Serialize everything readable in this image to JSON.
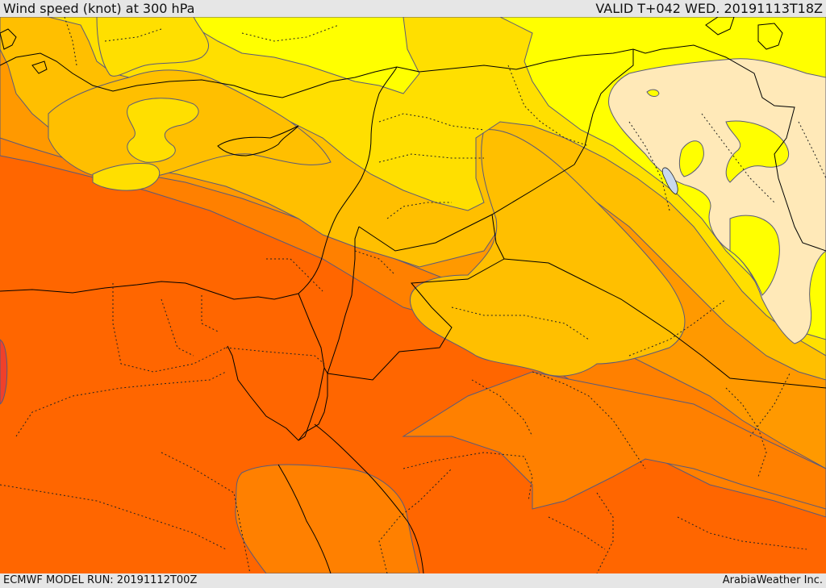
{
  "header": {
    "title": "Wind speed (knot) at 300 hPa",
    "valid": "VALID T+042 WED. 20191113T18Z"
  },
  "footer": {
    "model_run": "ECMWF MODEL RUN: 20191112T00Z",
    "brand": "ArabiaWeather Inc."
  },
  "colors": {
    "band_1": "#ffe9b8",
    "band_2": "#ffff00",
    "band_3": "#ffdf00",
    "band_4": "#ffbf00",
    "band_5": "#ff9900",
    "band_6": "#ff8000",
    "band_7": "#ff6600",
    "band_8": "#f0402a",
    "lake": "#c8d8ec",
    "contour": "#5a5a7a",
    "border": "#000000"
  }
}
